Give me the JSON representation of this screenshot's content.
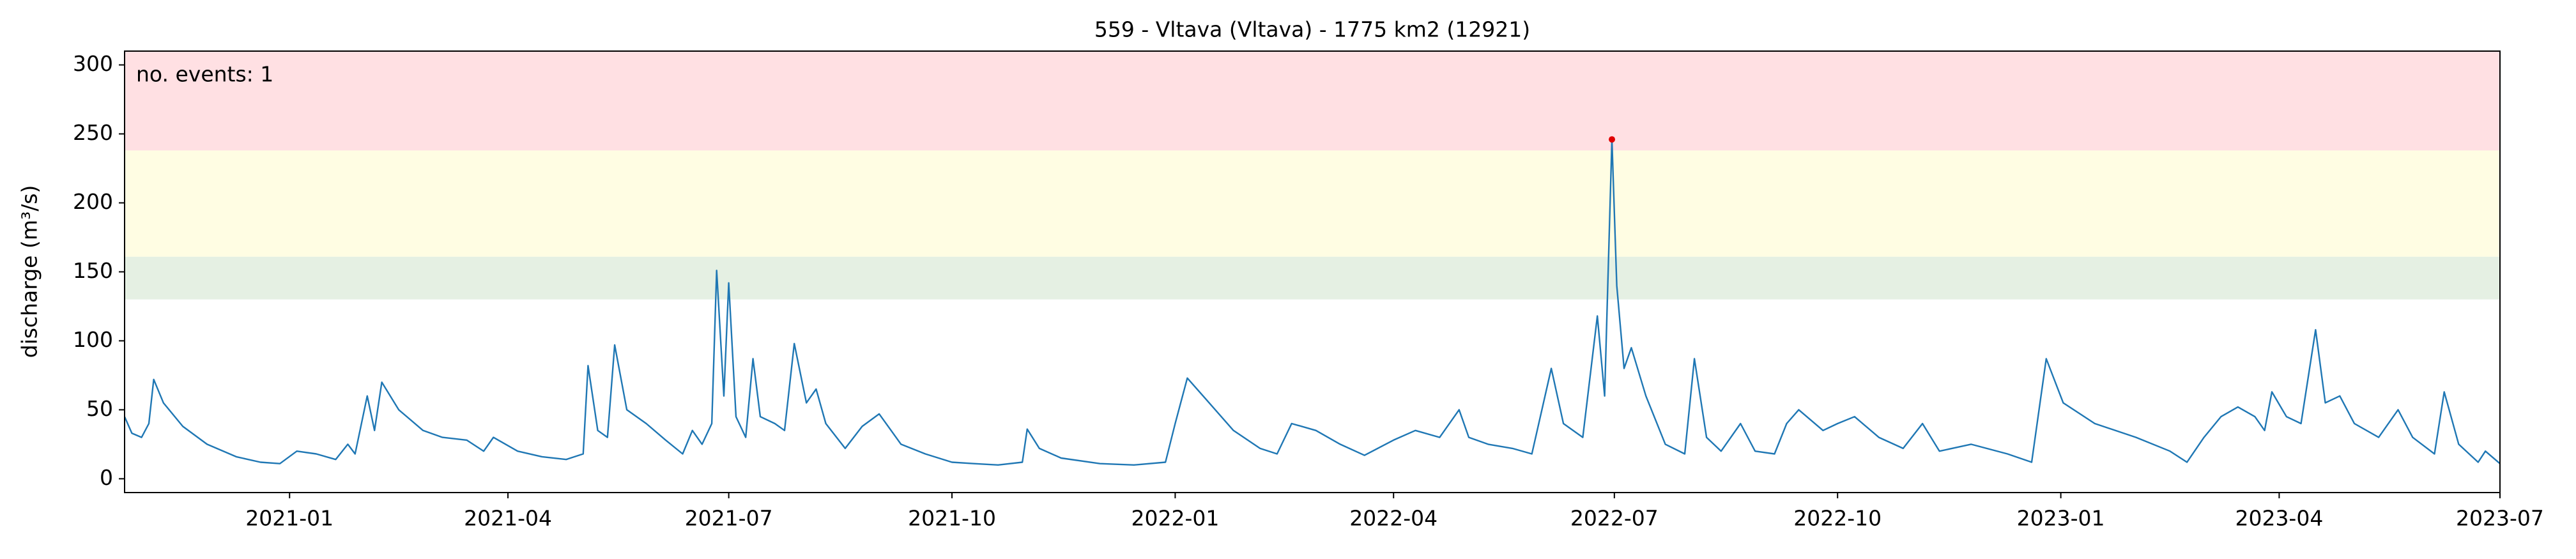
{
  "chart_data": {
    "type": "line",
    "title": "559 - Vltava (Vltava) - 1775 km2 (12921)",
    "ylabel": "discharge (m³/s)",
    "annotation": "no. events: 1",
    "annotation_color": "#d00000",
    "xlim": [
      "2020-10-25",
      "2023-07-01"
    ],
    "ylim": [
      -10,
      310
    ],
    "yticks": [
      0,
      50,
      100,
      150,
      200,
      250,
      300
    ],
    "xticks": [
      {
        "value": "2021-01-01",
        "label": "2021-01"
      },
      {
        "value": "2021-04-01",
        "label": "2021-04"
      },
      {
        "value": "2021-07-01",
        "label": "2021-07"
      },
      {
        "value": "2021-10-01",
        "label": "2021-10"
      },
      {
        "value": "2022-01-01",
        "label": "2022-01"
      },
      {
        "value": "2022-04-01",
        "label": "2022-04"
      },
      {
        "value": "2022-07-01",
        "label": "2022-07"
      },
      {
        "value": "2022-10-01",
        "label": "2022-10"
      },
      {
        "value": "2023-01-01",
        "label": "2023-01"
      },
      {
        "value": "2023-04-01",
        "label": "2023-04"
      },
      {
        "value": "2023-07-01",
        "label": "2023-07"
      }
    ],
    "bands": [
      {
        "from": 130,
        "to": 161,
        "color": "#e5f0e3"
      },
      {
        "from": 161,
        "to": 238,
        "color": "#fffde3"
      },
      {
        "from": 238,
        "to": 310,
        "color": "#ffe0e3"
      }
    ],
    "events": [
      {
        "x": "2022-06-30",
        "value": 246,
        "color": "#e00000"
      }
    ],
    "x": [
      "2020-10-25",
      "2020-10-28",
      "2020-11-01",
      "2020-11-04",
      "2020-11-06",
      "2020-11-10",
      "2020-11-18",
      "2020-11-28",
      "2020-12-10",
      "2020-12-20",
      "2020-12-28",
      "2021-01-04",
      "2021-01-12",
      "2021-01-20",
      "2021-01-25",
      "2021-01-28",
      "2021-02-02",
      "2021-02-05",
      "2021-02-08",
      "2021-02-15",
      "2021-02-25",
      "2021-03-05",
      "2021-03-15",
      "2021-03-22",
      "2021-03-26",
      "2021-04-05",
      "2021-04-15",
      "2021-04-25",
      "2021-05-02",
      "2021-05-04",
      "2021-05-08",
      "2021-05-12",
      "2021-05-15",
      "2021-05-20",
      "2021-05-28",
      "2021-06-05",
      "2021-06-12",
      "2021-06-16",
      "2021-06-20",
      "2021-06-24",
      "2021-06-26",
      "2021-06-29",
      "2021-07-01",
      "2021-07-04",
      "2021-07-08",
      "2021-07-11",
      "2021-07-14",
      "2021-07-20",
      "2021-07-24",
      "2021-07-28",
      "2021-08-02",
      "2021-08-06",
      "2021-08-10",
      "2021-08-18",
      "2021-08-25",
      "2021-09-01",
      "2021-09-10",
      "2021-09-20",
      "2021-10-01",
      "2021-10-10",
      "2021-10-20",
      "2021-10-30",
      "2021-11-01",
      "2021-11-06",
      "2021-11-15",
      "2021-12-01",
      "2021-12-15",
      "2021-12-28",
      "2022-01-01",
      "2022-01-06",
      "2022-01-15",
      "2022-01-25",
      "2022-02-05",
      "2022-02-12",
      "2022-02-18",
      "2022-02-28",
      "2022-03-10",
      "2022-03-20",
      "2022-04-01",
      "2022-04-10",
      "2022-04-20",
      "2022-04-28",
      "2022-05-02",
      "2022-05-10",
      "2022-05-20",
      "2022-05-28",
      "2022-06-05",
      "2022-06-10",
      "2022-06-18",
      "2022-06-24",
      "2022-06-27",
      "2022-06-30",
      "2022-07-02",
      "2022-07-05",
      "2022-07-08",
      "2022-07-14",
      "2022-07-22",
      "2022-07-30",
      "2022-08-03",
      "2022-08-08",
      "2022-08-14",
      "2022-08-22",
      "2022-08-28",
      "2022-09-05",
      "2022-09-10",
      "2022-09-15",
      "2022-09-25",
      "2022-10-01",
      "2022-10-08",
      "2022-10-18",
      "2022-10-28",
      "2022-11-05",
      "2022-11-12",
      "2022-11-25",
      "2022-12-10",
      "2022-12-20",
      "2022-12-26",
      "2023-01-02",
      "2023-01-15",
      "2023-02-01",
      "2023-02-15",
      "2023-02-22",
      "2023-03-01",
      "2023-03-08",
      "2023-03-15",
      "2023-03-22",
      "2023-03-26",
      "2023-03-29",
      "2023-04-04",
      "2023-04-10",
      "2023-04-16",
      "2023-04-20",
      "2023-04-26",
      "2023-05-02",
      "2023-05-12",
      "2023-05-20",
      "2023-05-26",
      "2023-06-04",
      "2023-06-08",
      "2023-06-14",
      "2023-06-22",
      "2023-06-25",
      "2023-07-01"
    ],
    "series": [
      {
        "color": "#1f77b4",
        "values": [
          45,
          33,
          30,
          40,
          72,
          55,
          38,
          25,
          16,
          12,
          11,
          20,
          18,
          14,
          25,
          18,
          60,
          35,
          70,
          50,
          35,
          30,
          28,
          20,
          30,
          20,
          16,
          14,
          18,
          82,
          35,
          30,
          97,
          50,
          40,
          28,
          18,
          35,
          25,
          40,
          151,
          60,
          142,
          45,
          30,
          87,
          45,
          40,
          35,
          98,
          55,
          65,
          40,
          22,
          38,
          47,
          25,
          18,
          12,
          11,
          10,
          12,
          36,
          22,
          15,
          11,
          10,
          12,
          40,
          73,
          55,
          35,
          22,
          18,
          40,
          35,
          25,
          17,
          28,
          35,
          30,
          50,
          30,
          25,
          22,
          18,
          80,
          40,
          30,
          118,
          60,
          246,
          140,
          80,
          95,
          60,
          25,
          18,
          87,
          30,
          20,
          40,
          20,
          18,
          40,
          50,
          35,
          40,
          45,
          30,
          22,
          40,
          20,
          25,
          18,
          12,
          87,
          55,
          40,
          30,
          20,
          12,
          30,
          45,
          52,
          45,
          35,
          63,
          45,
          40,
          108,
          55,
          60,
          40,
          30,
          50,
          30,
          18,
          63,
          25,
          12,
          20,
          11
        ]
      }
    ]
  }
}
